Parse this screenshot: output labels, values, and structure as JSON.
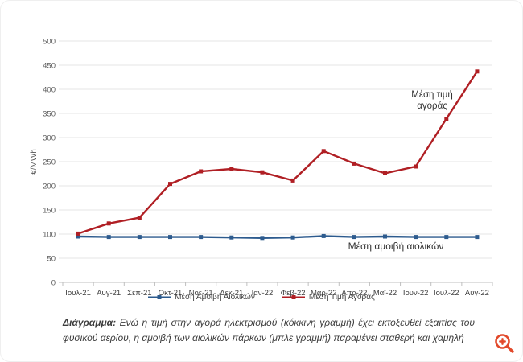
{
  "chart_data": {
    "type": "line",
    "title": "",
    "xlabel": "",
    "ylabel": "€/MWh",
    "ylim": [
      0,
      500
    ],
    "ytick_step": 50,
    "grid": true,
    "legend_position": "bottom-center",
    "categories": [
      "Ιουλ-21",
      "Αυγ-21",
      "Σεπ-21",
      "Οκτ-21",
      "Νοε-21",
      "Δεκ-21",
      "Ιαν-22",
      "Φεβ-22",
      "Μαρ-22",
      "Απρ-22",
      "Μαϊ-22",
      "Ιουν-22",
      "Ιουλ-22",
      "Αυγ-22"
    ],
    "series": [
      {
        "name": "Μέση Αμοιβή Αιολικών",
        "color": "#2d5b8e",
        "marker": "square",
        "values": [
          95,
          94,
          94,
          94,
          94,
          93,
          92,
          93,
          96,
          94,
          95,
          94,
          94,
          94
        ]
      },
      {
        "name": "Μέση Τιμή Αγοράς",
        "color": "#b01f24",
        "marker": "square",
        "values": [
          101,
          122,
          134,
          204,
          230,
          235,
          228,
          211,
          272,
          246,
          226,
          240,
          339,
          437
        ]
      }
    ],
    "annotations": [
      {
        "lines": [
          "Μέση τιμή",
          "αγοράς"
        ],
        "x": 537,
        "y": 121,
        "font_size": 11.5
      },
      {
        "lines": [
          "Μέση αμοιβή αιολικών"
        ],
        "x": 492,
        "y": 310,
        "font_size": 12
      }
    ]
  },
  "caption": {
    "label": "Διάγραμμα:",
    "text": " Ενώ η τιμή στην αγορά ηλεκτρισμού (κόκκινη γραμμή) έχει εκτοξευθεί εξαιτίας του φυσικού αερίου, η αμοιβή των αιολικών πάρκων (μπλε γραμμή) παραμένει σταθερή και χαμηλή"
  },
  "zoom_button": {
    "icon": "zoom-in-magnifier-plus",
    "color": "#e2492b"
  }
}
